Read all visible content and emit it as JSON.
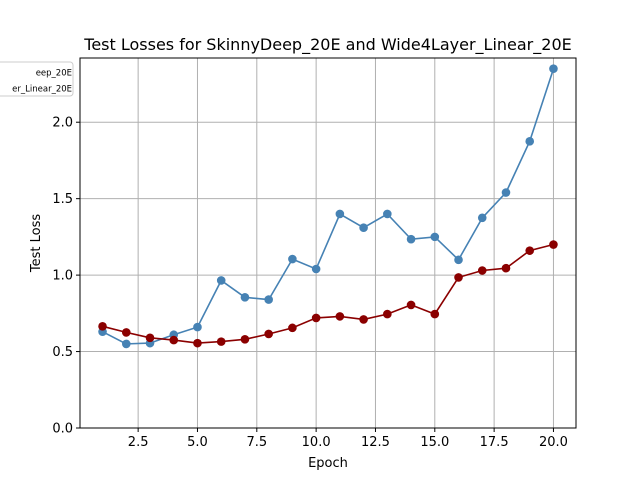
{
  "chart_data": {
    "type": "line",
    "title": "Test Losses for SkinnyDeep_20E and Wide4Layer_Linear_20E",
    "xlabel": "Epoch",
    "ylabel": "Test Loss",
    "xlim": [
      0.05,
      20.95
    ],
    "ylim": [
      0.0,
      2.42
    ],
    "xticks": [
      2.5,
      5.0,
      7.5,
      10.0,
      12.5,
      15.0,
      17.5,
      20.0
    ],
    "xtick_labels": [
      "2.5",
      "5.0",
      "7.5",
      "10.0",
      "12.5",
      "15.0",
      "17.5",
      "20.0"
    ],
    "yticks": [
      0.0,
      0.5,
      1.0,
      1.5,
      2.0
    ],
    "ytick_labels": [
      "0.0",
      "0.5",
      "1.0",
      "1.5",
      "2.0"
    ],
    "grid": true,
    "legend_position": "upper-left (partially outside the axes)",
    "x": [
      1,
      2,
      3,
      4,
      5,
      6,
      7,
      8,
      9,
      10,
      11,
      12,
      13,
      14,
      15,
      16,
      17,
      18,
      19,
      20
    ],
    "series": [
      {
        "name": "SkinnyDeep_20E",
        "legend_visible_text": "eep_20E",
        "color": "#4682b4",
        "values": [
          0.63,
          0.55,
          0.555,
          0.61,
          0.66,
          0.965,
          0.855,
          0.84,
          1.105,
          1.04,
          1.4,
          1.31,
          1.4,
          1.235,
          1.25,
          1.1,
          1.375,
          1.54,
          1.875,
          2.35
        ]
      },
      {
        "name": "Wide4Layer_Linear_20E",
        "legend_visible_text": "er_Linear_20E",
        "color": "#8b0000",
        "values": [
          0.665,
          0.625,
          0.59,
          0.575,
          0.555,
          0.565,
          0.58,
          0.615,
          0.655,
          0.72,
          0.73,
          0.71,
          0.745,
          0.805,
          0.745,
          0.985,
          1.03,
          1.045,
          1.16,
          1.2
        ]
      }
    ]
  }
}
